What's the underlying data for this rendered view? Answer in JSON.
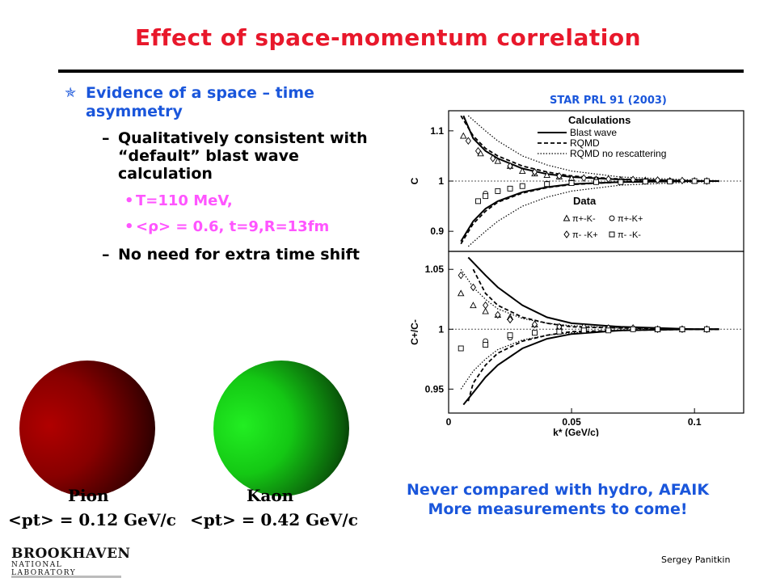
{
  "slide": {
    "title": "Effect of space-momentum correlation",
    "source": "STAR PRL 91 (2003)",
    "bullets": {
      "l1": "Evidence of a space – time asymmetry",
      "l2a": "Qualitatively consistent with “default” blast wave calculation",
      "l3a": "T=110 MeV,",
      "l3b": "<ρ> = 0.6, t=9,R=13fm",
      "l2b": "No need for extra time shift"
    },
    "note_line1": "Never compared with hydro, AFAIK",
    "note_line2": "More measurements to come!",
    "pion_label": "Pion",
    "pion_pt": "<pt> = 0.12 GeV/c",
    "kaon_label": "Kaon",
    "kaon_pt": "<pt> = 0.42 GeV/c",
    "author": "Sergey Panitkin",
    "logo_main": "BROOKHAVEN",
    "logo_sub": "NATIONAL LABORATORY",
    "colors": {
      "title": "#e8182b",
      "blue": "#1a56db",
      "magenta": "#ff55ff",
      "pion": "#aa0000",
      "kaon": "#22ee22"
    }
  },
  "chart_data": [
    {
      "type": "line",
      "title": "",
      "xlabel": "",
      "ylabel": "C",
      "xlim": [
        0,
        0.12
      ],
      "ylim": [
        0.86,
        1.14
      ],
      "yticks": [
        0.9,
        1,
        1.1
      ],
      "reference_line": 1,
      "legend_title": "Calculations",
      "data_title": "Data",
      "series": [
        {
          "name": "Blast wave",
          "style": "solid",
          "upper": [
            [
              0.006,
              1.13
            ],
            [
              0.01,
              1.085
            ],
            [
              0.015,
              1.06
            ],
            [
              0.02,
              1.045
            ],
            [
              0.03,
              1.025
            ],
            [
              0.04,
              1.014
            ],
            [
              0.05,
              1.008
            ],
            [
              0.07,
              1.003
            ],
            [
              0.1,
              1.0
            ],
            [
              0.11,
              1.0
            ]
          ],
          "lower": [
            [
              0.005,
              0.88
            ],
            [
              0.01,
              0.92
            ],
            [
              0.015,
              0.945
            ],
            [
              0.02,
              0.96
            ],
            [
              0.03,
              0.978
            ],
            [
              0.04,
              0.988
            ],
            [
              0.05,
              0.994
            ],
            [
              0.07,
              0.998
            ],
            [
              0.1,
              1.0
            ],
            [
              0.11,
              1.0
            ]
          ]
        },
        {
          "name": "RQMD",
          "style": "dashed",
          "upper": [
            [
              0.005,
              1.13
            ],
            [
              0.01,
              1.09
            ],
            [
              0.015,
              1.065
            ],
            [
              0.02,
              1.05
            ],
            [
              0.03,
              1.03
            ],
            [
              0.04,
              1.018
            ],
            [
              0.05,
              1.01
            ],
            [
              0.07,
              1.004
            ],
            [
              0.1,
              1.0
            ],
            [
              0.11,
              1.0
            ]
          ],
          "lower": [
            [
              0.005,
              0.875
            ],
            [
              0.01,
              0.915
            ],
            [
              0.015,
              0.94
            ],
            [
              0.02,
              0.958
            ],
            [
              0.03,
              0.976
            ],
            [
              0.04,
              0.987
            ],
            [
              0.05,
              0.993
            ],
            [
              0.07,
              0.998
            ],
            [
              0.1,
              1.0
            ],
            [
              0.11,
              1.0
            ]
          ]
        },
        {
          "name": "RQMD no rescattering",
          "style": "dotted",
          "upper": [
            [
              0.008,
              1.13
            ],
            [
              0.015,
              1.1
            ],
            [
              0.02,
              1.08
            ],
            [
              0.03,
              1.05
            ],
            [
              0.04,
              1.032
            ],
            [
              0.05,
              1.02
            ],
            [
              0.07,
              1.008
            ],
            [
              0.1,
              1.002
            ],
            [
              0.11,
              1.001
            ]
          ],
          "lower": [
            [
              0.008,
              0.87
            ],
            [
              0.015,
              0.9
            ],
            [
              0.02,
              0.92
            ],
            [
              0.03,
              0.95
            ],
            [
              0.04,
              0.968
            ],
            [
              0.05,
              0.98
            ],
            [
              0.07,
              0.992
            ],
            [
              0.1,
              0.998
            ],
            [
              0.11,
              0.999
            ]
          ]
        }
      ],
      "data_series": [
        {
          "name": "π+-K-",
          "marker": "triangle",
          "points": [
            [
              0.006,
              1.09
            ],
            [
              0.013,
              1.055
            ],
            [
              0.02,
              1.04
            ],
            [
              0.025,
              1.03
            ],
            [
              0.03,
              1.02
            ],
            [
              0.035,
              1.015
            ],
            [
              0.04,
              1.012
            ],
            [
              0.045,
              1.009
            ],
            [
              0.05,
              1.006
            ],
            [
              0.06,
              1.004
            ],
            [
              0.07,
              1.003
            ],
            [
              0.08,
              1.002
            ],
            [
              0.09,
              1.001
            ],
            [
              0.1,
              1.001
            ],
            [
              0.105,
              1.0
            ]
          ]
        },
        {
          "name": "π+-K+",
          "marker": "circle",
          "points": [
            [
              0.015,
              0.975
            ],
            [
              0.02,
              0.98
            ],
            [
              0.025,
              0.985
            ],
            [
              0.03,
              0.99
            ],
            [
              0.04,
              0.995
            ],
            [
              0.05,
              0.997
            ],
            [
              0.06,
              0.998
            ],
            [
              0.07,
              0.999
            ],
            [
              0.08,
              1.0
            ],
            [
              0.09,
              1.0
            ],
            [
              0.1,
              1.0
            ],
            [
              0.105,
              1.0
            ]
          ]
        },
        {
          "name": "π- -K+",
          "marker": "diamond",
          "points": [
            [
              0.008,
              1.08
            ],
            [
              0.012,
              1.06
            ],
            [
              0.018,
              1.045
            ],
            [
              0.025,
              1.03
            ],
            [
              0.035,
              1.018
            ],
            [
              0.045,
              1.01
            ],
            [
              0.055,
              1.006
            ],
            [
              0.065,
              1.004
            ],
            [
              0.075,
              1.003
            ],
            [
              0.085,
              1.002
            ],
            [
              0.095,
              1.001
            ],
            [
              0.105,
              1.0
            ]
          ]
        },
        {
          "name": "π- -K-",
          "marker": "square",
          "points": [
            [
              0.012,
              0.96
            ],
            [
              0.015,
              0.97
            ],
            [
              0.02,
              0.98
            ],
            [
              0.025,
              0.985
            ],
            [
              0.03,
              0.99
            ],
            [
              0.04,
              0.994
            ],
            [
              0.05,
              0.996
            ],
            [
              0.06,
              0.998
            ],
            [
              0.07,
              0.998
            ],
            [
              0.08,
              0.999
            ],
            [
              0.09,
              0.999
            ],
            [
              0.1,
              1.0
            ],
            [
              0.105,
              1.0
            ]
          ]
        }
      ]
    },
    {
      "type": "line",
      "title": "",
      "xlabel": "k* (GeV/c)",
      "ylabel": "C+/C-",
      "xlim": [
        0,
        0.12
      ],
      "ylim": [
        0.93,
        1.065
      ],
      "yticks": [
        0.95,
        1,
        1.05
      ],
      "xticks": [
        0,
        0.05,
        0.1
      ],
      "reference_line": 1,
      "series": [
        {
          "name": "Blast wave",
          "style": "solid",
          "upper": [
            [
              0.008,
              1.06
            ],
            [
              0.015,
              1.045
            ],
            [
              0.02,
              1.035
            ],
            [
              0.03,
              1.02
            ],
            [
              0.04,
              1.01
            ],
            [
              0.05,
              1.005
            ],
            [
              0.07,
              1.002
            ],
            [
              0.1,
              1.0
            ],
            [
              0.11,
              1.0
            ]
          ],
          "lower": [
            [
              0.006,
              0.937
            ],
            [
              0.01,
              0.947
            ],
            [
              0.015,
              0.96
            ],
            [
              0.02,
              0.97
            ],
            [
              0.03,
              0.984
            ],
            [
              0.04,
              0.992
            ],
            [
              0.05,
              0.996
            ],
            [
              0.07,
              0.999
            ],
            [
              0.1,
              1.0
            ],
            [
              0.11,
              1.0
            ]
          ]
        },
        {
          "name": "RQMD",
          "style": "dashed",
          "upper": [
            [
              0.01,
              1.05
            ],
            [
              0.015,
              1.03
            ],
            [
              0.02,
              1.02
            ],
            [
              0.03,
              1.01
            ],
            [
              0.04,
              1.005
            ],
            [
              0.05,
              1.002
            ],
            [
              0.07,
              1.001
            ],
            [
              0.1,
              1.0
            ],
            [
              0.11,
              1.0
            ]
          ],
          "lower": [
            [
              0.008,
              0.94
            ],
            [
              0.01,
              0.955
            ],
            [
              0.015,
              0.97
            ],
            [
              0.02,
              0.98
            ],
            [
              0.03,
              0.99
            ],
            [
              0.04,
              0.995
            ],
            [
              0.05,
              0.998
            ],
            [
              0.07,
              0.999
            ],
            [
              0.1,
              1.0
            ],
            [
              0.11,
              1.0
            ]
          ]
        },
        {
          "name": "RQMD no rescattering",
          "style": "dotted",
          "upper": [
            [
              0.005,
              1.05
            ],
            [
              0.01,
              1.035
            ],
            [
              0.015,
              1.025
            ],
            [
              0.02,
              1.017
            ],
            [
              0.03,
              1.009
            ],
            [
              0.04,
              1.005
            ],
            [
              0.05,
              1.003
            ],
            [
              0.07,
              1.001
            ],
            [
              0.1,
              1.0
            ],
            [
              0.11,
              1.0
            ]
          ],
          "lower": [
            [
              0.005,
              0.95
            ],
            [
              0.01,
              0.965
            ],
            [
              0.015,
              0.975
            ],
            [
              0.02,
              0.983
            ],
            [
              0.03,
              0.991
            ],
            [
              0.04,
              0.995
            ],
            [
              0.05,
              0.997
            ],
            [
              0.07,
              0.999
            ],
            [
              0.1,
              1.0
            ],
            [
              0.11,
              1.0
            ]
          ]
        }
      ],
      "data_series": [
        {
          "name": "π+-K-",
          "marker": "triangle",
          "points": [
            [
              0.005,
              1.03
            ],
            [
              0.01,
              1.02
            ],
            [
              0.015,
              1.015
            ],
            [
              0.02,
              1.012
            ],
            [
              0.025,
              1.01
            ],
            [
              0.035,
              1.004
            ],
            [
              0.045,
              1.002
            ],
            [
              0.055,
              1.002
            ],
            [
              0.065,
              1.001
            ],
            [
              0.075,
              1.001
            ],
            [
              0.085,
              1.0
            ],
            [
              0.095,
              1.0
            ],
            [
              0.105,
              1.0
            ]
          ]
        },
        {
          "name": "π+-K+",
          "marker": "circle",
          "points": [
            [
              0.015,
              0.99
            ],
            [
              0.025,
              0.993
            ],
            [
              0.035,
              0.997
            ],
            [
              0.045,
              0.999
            ],
            [
              0.055,
              0.999
            ],
            [
              0.065,
              1.0
            ],
            [
              0.075,
              1.0
            ],
            [
              0.085,
              1.0
            ],
            [
              0.095,
              1.0
            ],
            [
              0.105,
              1.0
            ]
          ]
        },
        {
          "name": "π- -K+",
          "marker": "diamond",
          "points": [
            [
              0.005,
              1.045
            ],
            [
              0.01,
              1.035
            ],
            [
              0.015,
              1.02
            ],
            [
              0.02,
              1.012
            ],
            [
              0.025,
              1.008
            ],
            [
              0.035,
              1.004
            ],
            [
              0.045,
              1.002
            ],
            [
              0.055,
              1.002
            ],
            [
              0.065,
              1.001
            ],
            [
              0.075,
              1.001
            ],
            [
              0.085,
              1.0
            ],
            [
              0.095,
              1.0
            ],
            [
              0.105,
              1.0
            ]
          ]
        },
        {
          "name": "π- -K-",
          "marker": "square",
          "points": [
            [
              0.005,
              0.984
            ],
            [
              0.015,
              0.987
            ],
            [
              0.025,
              0.995
            ],
            [
              0.035,
              0.997
            ],
            [
              0.045,
              0.998
            ],
            [
              0.055,
              0.999
            ],
            [
              0.065,
              0.999
            ],
            [
              0.075,
              1.0
            ],
            [
              0.085,
              1.0
            ],
            [
              0.095,
              1.0
            ],
            [
              0.105,
              1.0
            ]
          ]
        }
      ]
    }
  ]
}
